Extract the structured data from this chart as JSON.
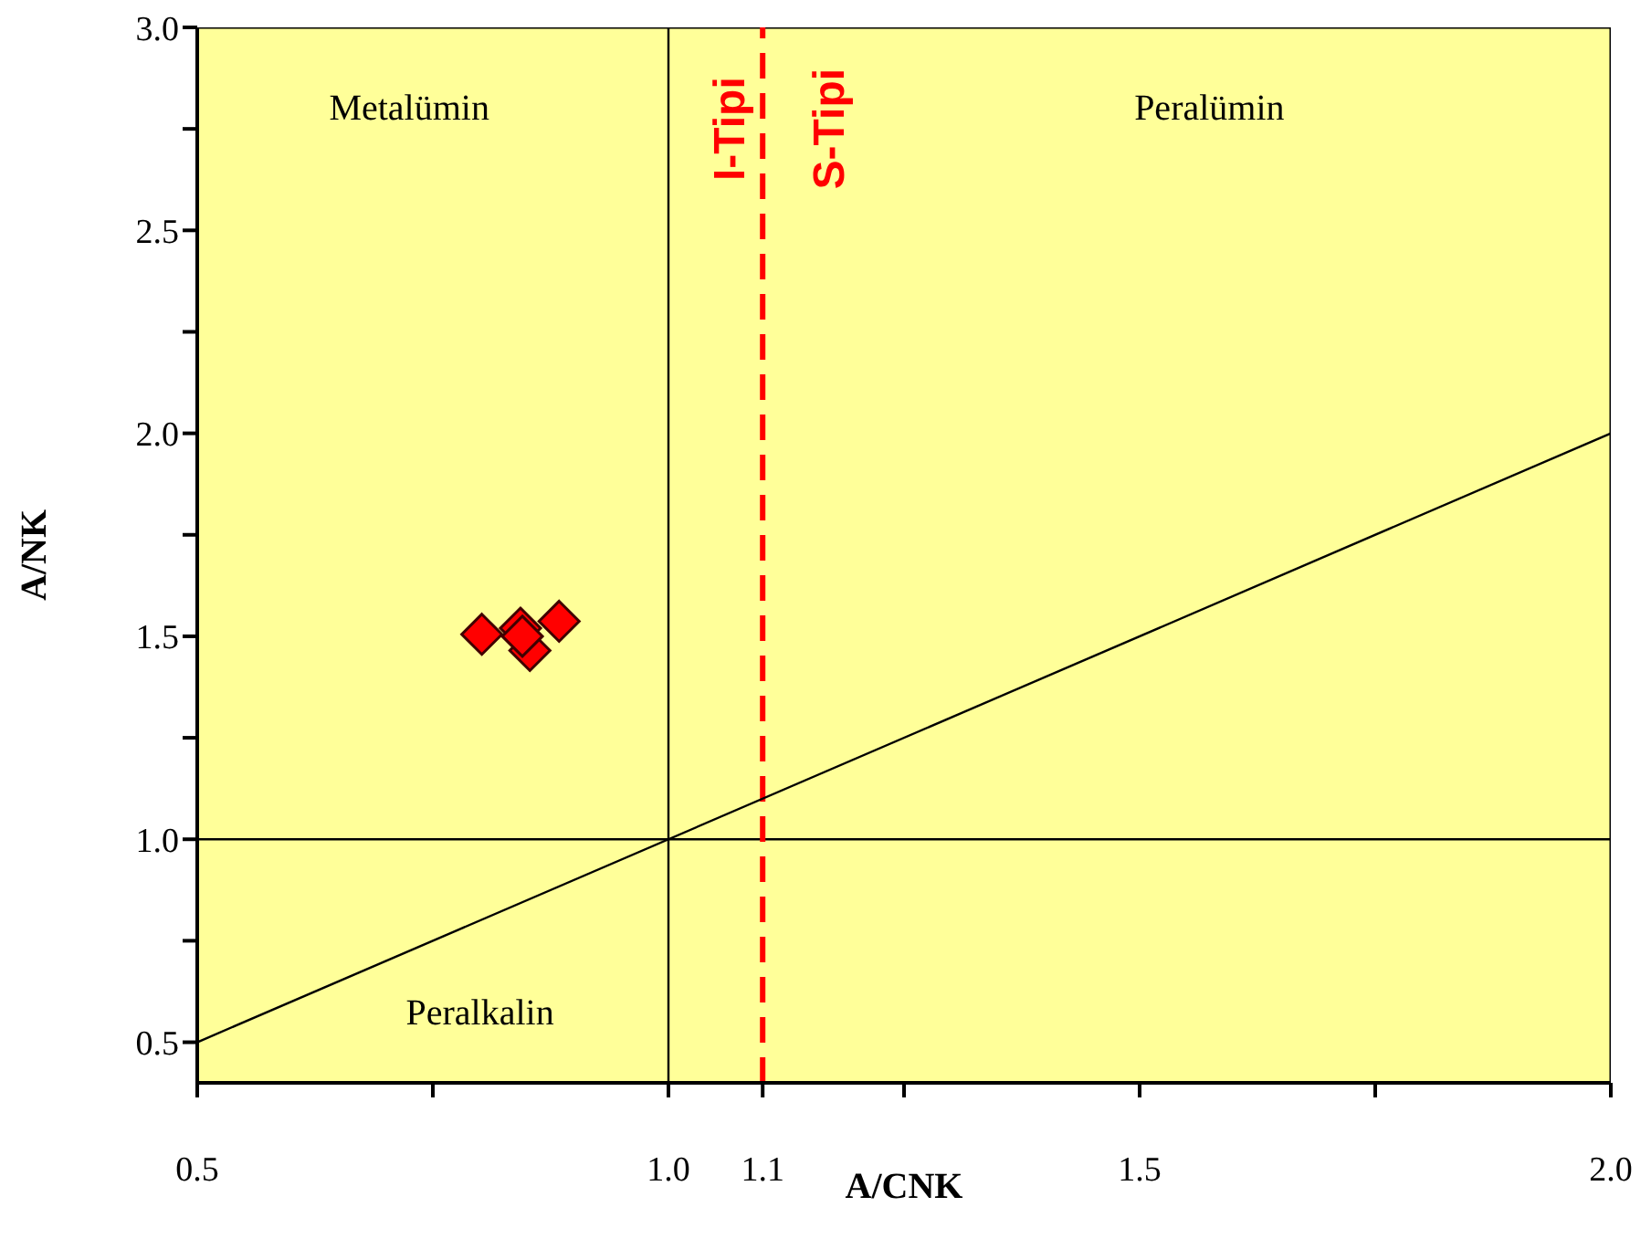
{
  "chart_data": {
    "type": "scatter",
    "xlabel": "A/CNK",
    "ylabel": "A/NK",
    "xlim": [
      0.5,
      2.0
    ],
    "ylim": [
      0.4,
      3.0
    ],
    "xticks": [
      {
        "value": 0.5,
        "label": "0.5"
      },
      {
        "value": 0.75,
        "label": null
      },
      {
        "value": 1.0,
        "label": "1.0"
      },
      {
        "value": 1.1,
        "label": "1.1"
      },
      {
        "value": 1.25,
        "label": null
      },
      {
        "value": 1.5,
        "label": "1.5"
      },
      {
        "value": 1.75,
        "label": null
      },
      {
        "value": 2.0,
        "label": "2.0"
      }
    ],
    "yticks": [
      {
        "value": 0.5,
        "label": "0.5"
      },
      {
        "value": 0.75,
        "label": null
      },
      {
        "value": 1.0,
        "label": "1.0"
      },
      {
        "value": 1.25,
        "label": null
      },
      {
        "value": 1.5,
        "label": "1.5"
      },
      {
        "value": 1.75,
        "label": null
      },
      {
        "value": 2.0,
        "label": "2.0"
      },
      {
        "value": 2.25,
        "label": null
      },
      {
        "value": 2.5,
        "label": "2.5"
      },
      {
        "value": 2.75,
        "label": null
      },
      {
        "value": 3.0,
        "label": "3.0"
      }
    ],
    "series": [
      {
        "color": "#ff0000",
        "marker": "diamond",
        "x": [
          0.802,
          0.843,
          0.884,
          0.853,
          0.845
        ],
        "values": [
          1.505,
          1.52,
          1.537,
          1.465,
          1.5
        ]
      },
      {
        "type": "line",
        "color": "#000000",
        "x": [
          0.5,
          2.0
        ],
        "values": [
          0.5,
          2.0
        ]
      }
    ],
    "ref_lines": [
      {
        "axis": "x",
        "value": 1.0,
        "color": "#000000",
        "line_style": "solid"
      },
      {
        "axis": "y",
        "value": 1.0,
        "color": "#000000",
        "line_style": "solid"
      },
      {
        "axis": "x",
        "value": 1.1,
        "color": "#ff0000",
        "line_style": "dashed"
      }
    ],
    "annotations": [
      "Metalümin",
      "Peralümin",
      "Peralkalin",
      "I-Tipi",
      "S-Tipi"
    ]
  }
}
